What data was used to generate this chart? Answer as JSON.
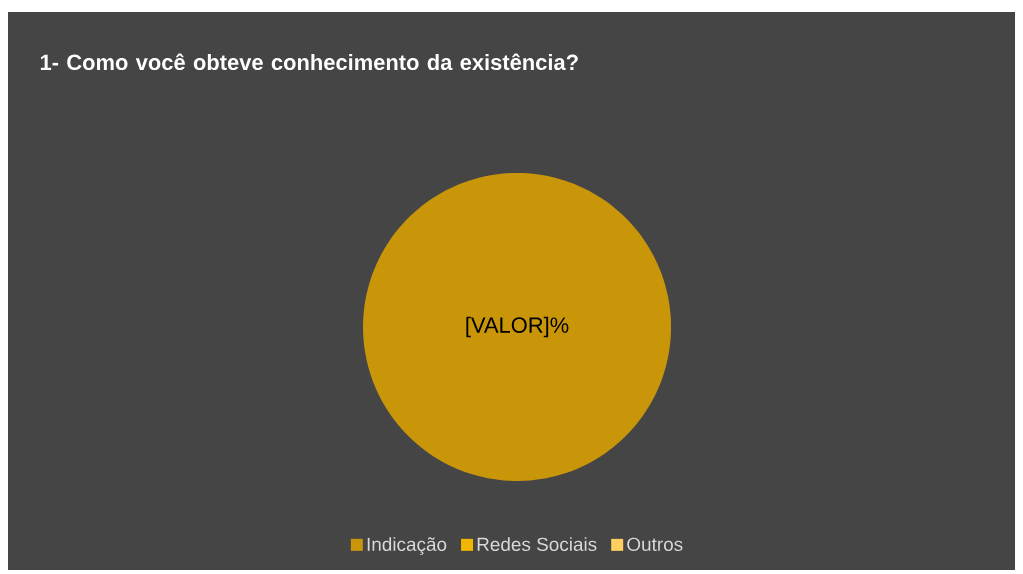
{
  "chart_data": {
    "type": "pie",
    "title": "1- Como você obteve conhecimento da existência?",
    "categories": [
      "Indicação",
      "Redes Sociais",
      "Outros"
    ],
    "values": [
      100,
      0,
      0
    ],
    "colors": [
      "#c9960a",
      "#f2b600",
      "#ffd060"
    ],
    "value_labels": [
      "[VALOR]%",
      null,
      null
    ],
    "legend": "bottom"
  }
}
